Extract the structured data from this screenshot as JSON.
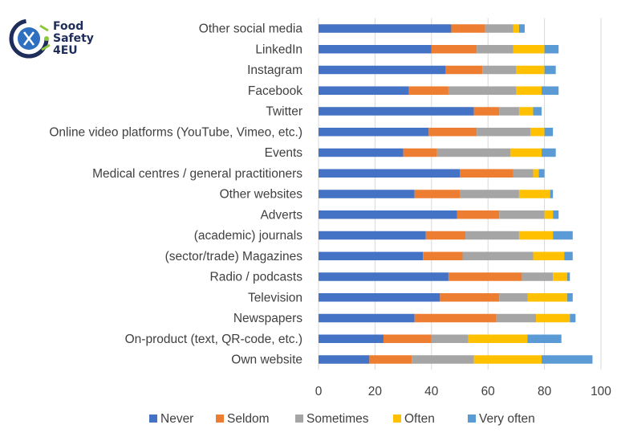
{
  "logo": {
    "icon": "food-safety-logo-icon",
    "line1": "Food",
    "line2": "Safety",
    "line3": "4EU"
  },
  "chart_data": {
    "type": "bar",
    "orientation": "horizontal",
    "stacked": true,
    "title": "",
    "xlabel": "",
    "ylabel": "",
    "xlim": [
      0,
      100
    ],
    "xticks": [
      0,
      20,
      40,
      60,
      80,
      100
    ],
    "grid": "vertical",
    "legend_position": "bottom",
    "categories": [
      "Other social media",
      "LinkedIn",
      "Instagram",
      "Facebook",
      "Twitter",
      "Online video platforms (YouTube, Vimeo, etc.)",
      "Events",
      "Medical centres / general practitioners",
      "Other websites",
      "Adverts",
      "(academic) journals",
      "(sector/trade) Magazines",
      "Radio / podcasts",
      "Television",
      "Newspapers",
      "On-product (text, QR-code, etc.)",
      "Own website"
    ],
    "series": [
      {
        "name": "Never",
        "color": "#4472c4",
        "values": [
          47,
          40,
          45,
          32,
          55,
          39,
          30,
          50,
          34,
          49,
          38,
          37,
          46,
          43,
          34,
          23,
          18
        ]
      },
      {
        "name": "Seldom",
        "color": "#ed7d31",
        "values": [
          12,
          16,
          13,
          14,
          9,
          17,
          12,
          19,
          16,
          15,
          14,
          14,
          26,
          21,
          29,
          17,
          15
        ]
      },
      {
        "name": "Sometimes",
        "color": "#a5a5a5",
        "values": [
          10,
          13,
          12,
          24,
          7,
          19,
          26,
          7,
          21,
          16,
          19,
          25,
          11,
          10,
          14,
          13,
          22
        ]
      },
      {
        "name": "Often",
        "color": "#ffc000",
        "values": [
          2,
          11,
          10,
          9,
          5,
          5,
          11,
          2,
          11,
          3,
          12,
          11,
          5,
          14,
          12,
          21,
          24
        ]
      },
      {
        "name": "Very often",
        "color": "#5b9bd5",
        "values": [
          2,
          5,
          4,
          6,
          3,
          3,
          5,
          2,
          1,
          2,
          7,
          3,
          1,
          2,
          2,
          12,
          18
        ]
      }
    ]
  }
}
